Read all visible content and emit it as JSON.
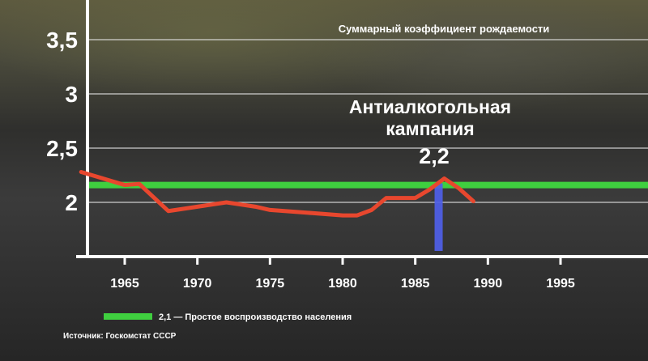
{
  "chart_data": {
    "type": "line",
    "title": "Суммарный коэффициент рождаемости",
    "xlim": [
      1962,
      2000
    ],
    "ylim": [
      1.5,
      3.8
    ],
    "x_ticks": [
      "1965",
      "1970",
      "1975",
      "1980",
      "1985",
      "1990",
      "1995"
    ],
    "y_ticks": [
      "2",
      "2,5",
      "3",
      "3,5"
    ],
    "grid": true,
    "series": [
      {
        "values": [
          [
            1962,
            2.28
          ],
          [
            1965,
            2.16
          ],
          [
            1966,
            2.17
          ],
          [
            1968,
            1.92
          ],
          [
            1970,
            1.96
          ],
          [
            1972,
            2.0
          ],
          [
            1974,
            1.96
          ],
          [
            1975,
            1.93
          ],
          [
            1978,
            1.9
          ],
          [
            1979,
            1.89
          ],
          [
            1980,
            1.88
          ],
          [
            1981,
            1.88
          ],
          [
            1982,
            1.93
          ],
          [
            1983,
            2.04
          ],
          [
            1985,
            2.04
          ],
          [
            1986,
            2.12
          ],
          [
            1987,
            2.22
          ],
          [
            1988,
            2.13
          ],
          [
            1989,
            2.01
          ]
        ],
        "color": "#e8472e"
      }
    ],
    "reference_line": {
      "value": 2.1,
      "label": "2,1 — Простое воспроизводство населения",
      "color": "#3fcf3f"
    },
    "highlight": {
      "x": 1987,
      "value_label": "2,2",
      "annotation": [
        "Антиалкогольная",
        "кампания"
      ],
      "color": "#4f5fe8"
    },
    "legend_position": "bottom-left",
    "source": "Источник: Госкомстат СССР"
  }
}
